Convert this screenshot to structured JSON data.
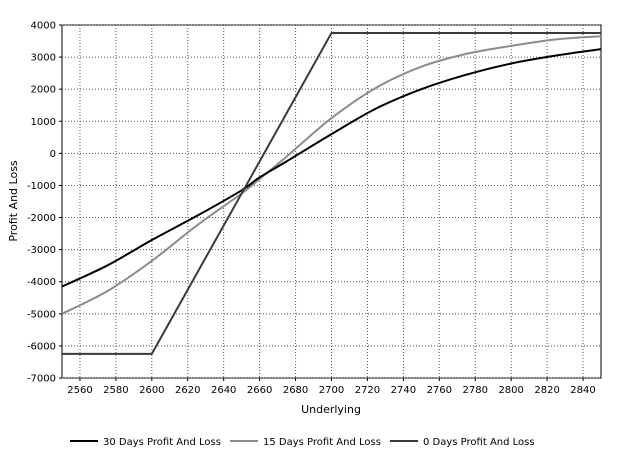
{
  "chart_data": {
    "type": "line",
    "title": "",
    "xlabel": "Underlying",
    "ylabel": "Profit And Loss",
    "xlim": [
      2550,
      2850
    ],
    "ylim": [
      -7000,
      4000
    ],
    "x_ticks": [
      2560,
      2580,
      2600,
      2620,
      2640,
      2660,
      2680,
      2700,
      2720,
      2740,
      2760,
      2780,
      2800,
      2820,
      2840
    ],
    "y_ticks": [
      -7000,
      -6000,
      -5000,
      -4000,
      -3000,
      -2000,
      -1000,
      0,
      1000,
      2000,
      3000,
      4000
    ],
    "grid": true,
    "legend_position": "bottom",
    "series": [
      {
        "name": "30 Days Profit And Loss",
        "color": "#000000",
        "x": [
          2550,
          2575,
          2600,
          2625,
          2650,
          2660,
          2675,
          2700,
          2725,
          2750,
          2775,
          2800,
          2825,
          2850
        ],
        "y": [
          -4150,
          -3500,
          -2700,
          -1950,
          -1150,
          -750,
          -250,
          600,
          1400,
          2000,
          2450,
          2800,
          3050,
          3250
        ]
      },
      {
        "name": "15 Days Profit And Loss",
        "color": "#8c8c8c",
        "x": [
          2550,
          2575,
          2600,
          2625,
          2650,
          2660,
          2675,
          2700,
          2725,
          2750,
          2775,
          2800,
          2825,
          2850
        ],
        "y": [
          -5000,
          -4300,
          -3350,
          -2250,
          -1250,
          -800,
          -100,
          1100,
          2050,
          2700,
          3100,
          3350,
          3550,
          3650
        ]
      },
      {
        "name": "0 Days Profit And Loss",
        "color": "#3a3a3a",
        "x": [
          2550,
          2600,
          2700,
          2850
        ],
        "y": [
          -6250,
          -6250,
          3750,
          3750
        ]
      }
    ]
  }
}
